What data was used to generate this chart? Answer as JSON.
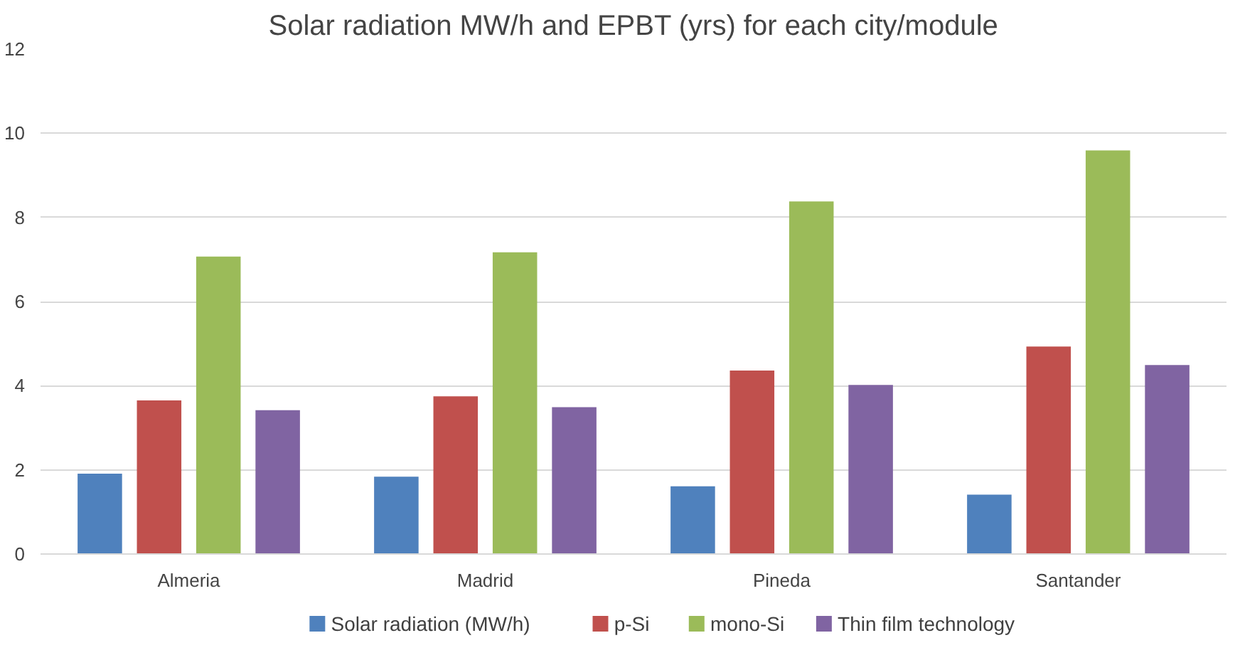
{
  "chart_data": {
    "type": "bar",
    "title": "Solar radiation MW/h and EPBT (yrs) for each city/module",
    "categories": [
      "Almeria",
      "Madrid",
      "Pineda",
      "Santander"
    ],
    "series": [
      {
        "name": "Solar radiation (MW/h)",
        "color": "#4f81bd",
        "values": [
          1.91,
          1.84,
          1.61,
          1.41
        ]
      },
      {
        "name": "p-Si",
        "color": "#c0504d",
        "values": [
          3.65,
          3.75,
          4.36,
          4.93
        ]
      },
      {
        "name": "mono-Si",
        "color": "#9bbb59",
        "values": [
          7.07,
          7.17,
          8.38,
          9.59
        ]
      },
      {
        "name": "Thin film technology",
        "color": "#8064a2",
        "values": [
          3.42,
          3.49,
          4.02,
          4.49
        ]
      }
    ],
    "ylim": [
      0,
      12
    ],
    "yticks": [
      0,
      2,
      4,
      6,
      8,
      10,
      12
    ],
    "grid": "y",
    "legend": "bottom"
  }
}
